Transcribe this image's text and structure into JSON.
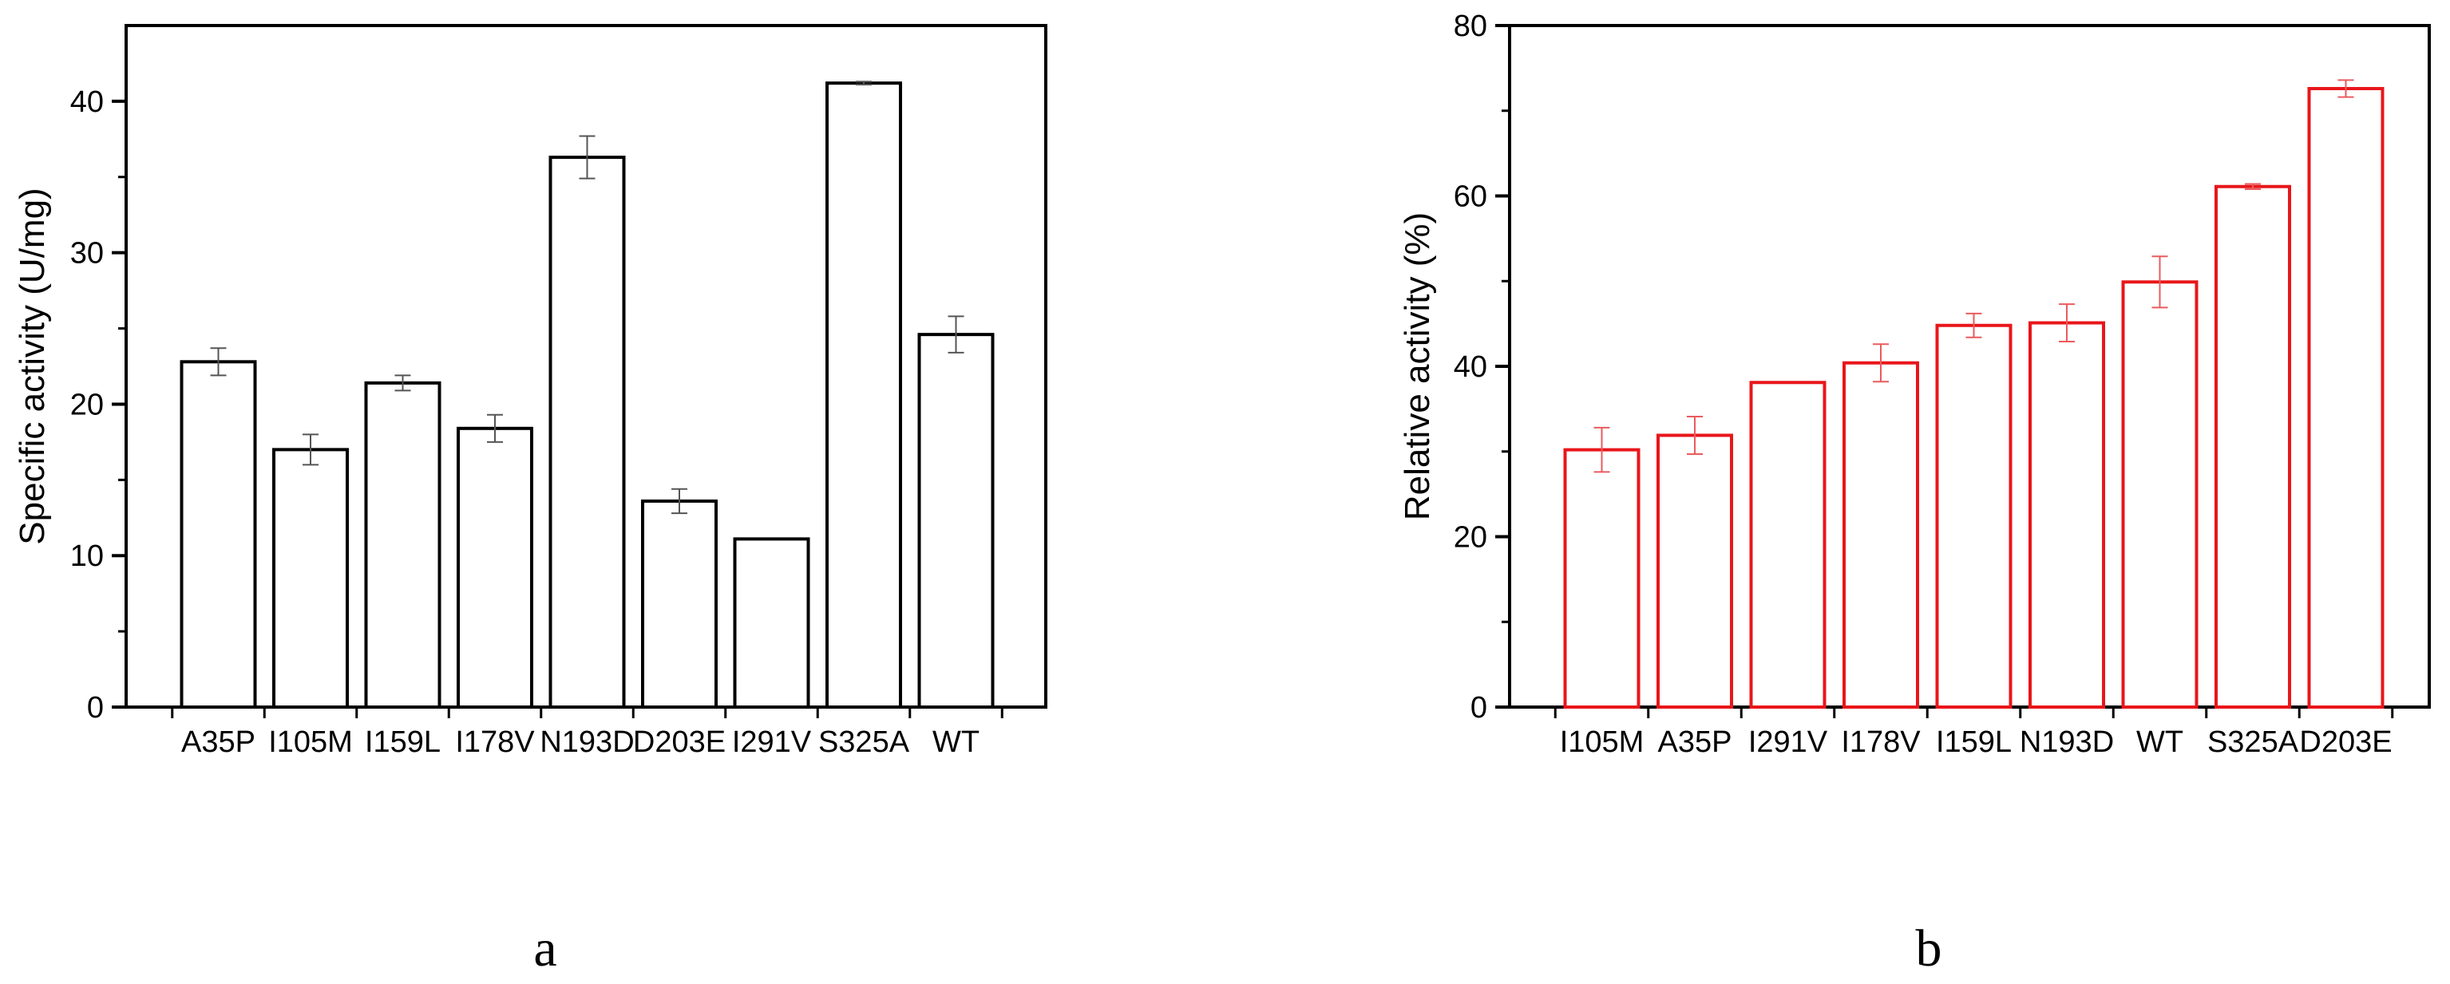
{
  "chart_data": [
    {
      "type": "bar",
      "panel_label": "a",
      "categories": [
        "A35P",
        "I105M",
        "I159L",
        "I178V",
        "N193D",
        "D203E",
        "I291V",
        "S325A",
        "WT"
      ],
      "values": [
        22.8,
        17.0,
        21.4,
        18.4,
        36.3,
        13.6,
        11.1,
        41.2,
        24.6
      ],
      "errors": [
        0.9,
        1.0,
        0.5,
        0.9,
        1.4,
        0.8,
        0.0,
        0.1,
        1.2
      ],
      "xlabel": "",
      "ylabel": "Specific activity (U/mg)",
      "ylim": [
        0,
        45
      ],
      "yticks": [
        0,
        10,
        20,
        30,
        40
      ],
      "ytick_labels": [
        "0",
        "10",
        "20",
        "30",
        "40"
      ],
      "bar_color": "#000000",
      "error_color": "#555555"
    },
    {
      "type": "bar",
      "panel_label": "b",
      "categories": [
        "I105M",
        "A35P",
        "I291V",
        "I178V",
        "I159L",
        "N193D",
        "WT",
        "S325A",
        "D203E"
      ],
      "values": [
        30.2,
        31.9,
        38.1,
        40.4,
        44.8,
        45.1,
        49.9,
        61.1,
        72.6
      ],
      "errors": [
        2.6,
        2.2,
        0.0,
        2.2,
        1.4,
        2.2,
        3.0,
        0.3,
        1.0
      ],
      "xlabel": "",
      "ylabel": "Relative activity (%)",
      "ylim": [
        0,
        80
      ],
      "yticks": [
        0,
        20,
        40,
        60,
        80
      ],
      "ytick_labels": [
        "0",
        "20",
        "40",
        "60",
        "80"
      ],
      "bar_color": "#e8161a",
      "error_color": "#ea5b5e"
    }
  ]
}
